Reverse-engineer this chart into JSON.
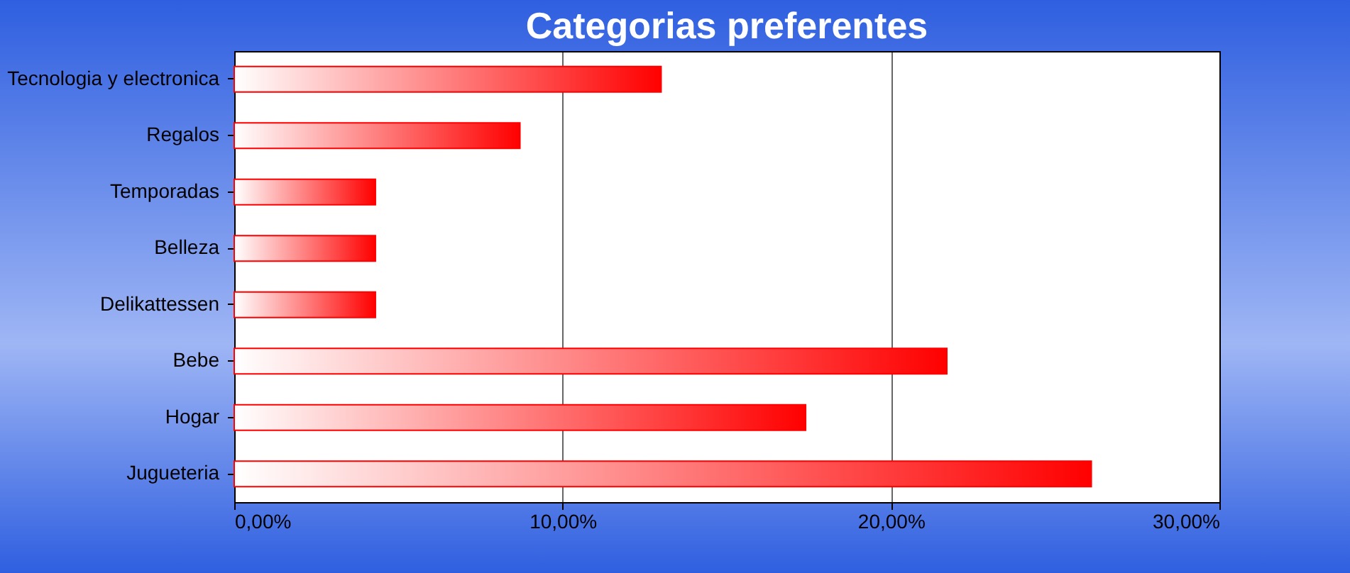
{
  "chart_data": {
    "type": "bar",
    "orientation": "horizontal",
    "title": "Categorias preferentes",
    "categories": [
      "Tecnologia y electronica",
      "Regalos",
      "Temporadas",
      "Belleza",
      "Delikattessen",
      "Bebe",
      "Hogar",
      "Jugueteria"
    ],
    "values": [
      13.0,
      8.7,
      4.3,
      4.3,
      4.3,
      21.7,
      17.4,
      26.1
    ],
    "color": "#ff0000",
    "xlim": [
      0,
      30
    ],
    "xticks": [
      {
        "value": 0,
        "label": "0,00%"
      },
      {
        "value": 10,
        "label": "10,00%"
      },
      {
        "value": 20,
        "label": "20,00%"
      },
      {
        "value": 30,
        "label": "30,00%"
      }
    ],
    "grid": "x"
  }
}
